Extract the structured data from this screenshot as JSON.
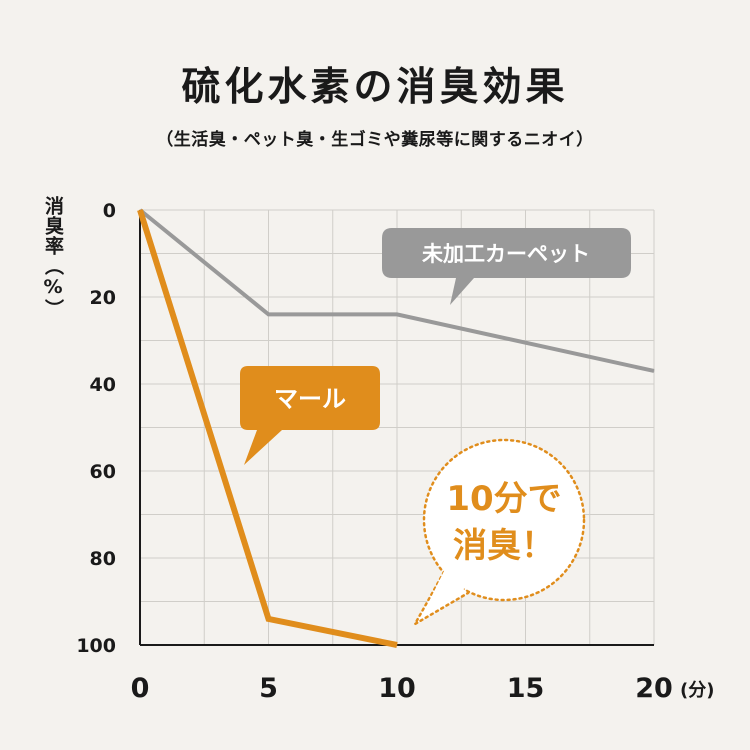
{
  "title": "硫化水素の消臭効果",
  "subtitle": "（生活臭・ペット臭・生ゴミや糞尿等に関するニオイ）",
  "chart_data": {
    "type": "line",
    "ylabel": "消臭率（%）",
    "xunit": "(分)",
    "x_ticks": [
      "0",
      "5",
      "10",
      "15",
      "20"
    ],
    "y_ticks": [
      "0",
      "20",
      "40",
      "60",
      "80",
      "100"
    ],
    "xlim": [
      0,
      20
    ],
    "ylim": [
      0,
      100
    ],
    "y_inverted": true,
    "grid": true,
    "series": [
      {
        "name": "未加工カーペット",
        "color": "#999999",
        "x": [
          0,
          5,
          10,
          20
        ],
        "y": [
          0,
          24,
          24,
          37
        ]
      },
      {
        "name": "マール",
        "color": "#e08d1c",
        "x": [
          0,
          5,
          10
        ],
        "y": [
          0,
          94,
          100
        ]
      }
    ],
    "annotation": {
      "line1": "10分で",
      "line2": "消臭！",
      "color": "#e08d1c"
    }
  }
}
